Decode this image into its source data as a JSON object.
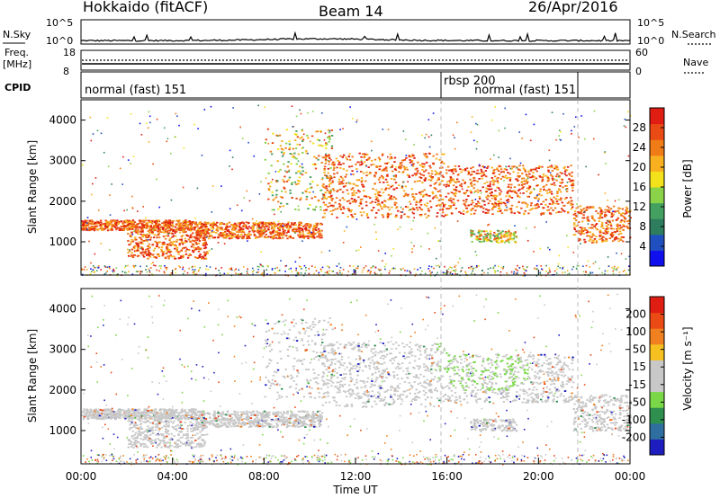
{
  "header": {
    "left": "Hokkaido (fitACF)",
    "center": "Beam 14",
    "right": "26/Apr/2016"
  },
  "labels": {
    "nsky": "N.Sky",
    "nsearch": "N.Search",
    "freq": "Freq.",
    "freq_unit": "[MHz]",
    "nave": "Nave",
    "cpid": "CPID",
    "slant_range": "Slant Range [km]",
    "time_ut": "Time UT",
    "power": "Power [dB]",
    "velocity": "Velocity [m s⁻¹]"
  },
  "noise_axis": {
    "left_ticks": [
      "10^5",
      "10^0"
    ],
    "right_ticks": [
      "10^5",
      "10^0"
    ]
  },
  "freq_axis": {
    "left_ticks": [
      "18",
      "8"
    ],
    "right_ticks": [
      "60",
      "0"
    ]
  },
  "cpid_labels": [
    {
      "start_hour": 0,
      "text": "normal (fast) 151"
    },
    {
      "start_hour": 16,
      "text": "rbsp 200"
    },
    {
      "start_hour": 16,
      "text": "normal (fast) 151"
    }
  ],
  "chart_data": [
    {
      "type": "heatmap",
      "name": "power",
      "xlabel": "Time UT",
      "ylabel": "Slant Range [km]",
      "xlim": [
        0,
        24
      ],
      "ylim": [
        180,
        4500
      ],
      "x_ticks": [
        "00:00",
        "04:00",
        "08:00",
        "12:00",
        "16:00",
        "20:00",
        "00:00"
      ],
      "y_ticks": [
        1000,
        2000,
        3000,
        4000
      ],
      "colorbar": {
        "label": "Power [dB]",
        "ticks": [
          4,
          8,
          12,
          16,
          20,
          24,
          28
        ],
        "colors": [
          "#1010ee",
          "#2050c0",
          "#2e7d5e",
          "#44a060",
          "#8ad248",
          "#f2e11b",
          "#f8b020",
          "#f07c18",
          "#ea4a14",
          "#e01d12"
        ]
      },
      "bands": [
        {
          "t_start": 0.0,
          "t_end": 5.0,
          "range_start": 1300,
          "range_end": 1550,
          "level": "high"
        },
        {
          "t_start": 2.0,
          "t_end": 5.5,
          "range_start": 600,
          "range_end": 1300,
          "level": "high"
        },
        {
          "t_start": 5.0,
          "t_end": 10.5,
          "range_start": 1100,
          "range_end": 1500,
          "level": "high"
        },
        {
          "t_start": 8.0,
          "t_end": 11.0,
          "range_start": 1800,
          "range_end": 3800,
          "level": "medium"
        },
        {
          "t_start": 10.5,
          "t_end": 16.0,
          "range_start": 1600,
          "range_end": 3200,
          "level": "high"
        },
        {
          "t_start": 16.0,
          "t_end": 21.5,
          "range_start": 1700,
          "range_end": 2900,
          "level": "high"
        },
        {
          "t_start": 21.5,
          "t_end": 24.0,
          "range_start": 1000,
          "range_end": 1900,
          "level": "high"
        },
        {
          "t_start": 17.0,
          "t_end": 19.0,
          "range_start": 1000,
          "range_end": 1300,
          "level": "medium"
        }
      ]
    },
    {
      "type": "heatmap",
      "name": "velocity",
      "xlabel": "Time UT",
      "ylabel": "Slant Range [km]",
      "xlim": [
        0,
        24
      ],
      "ylim": [
        180,
        4500
      ],
      "x_ticks": [
        "00:00",
        "04:00",
        "08:00",
        "12:00",
        "16:00",
        "20:00",
        "00:00"
      ],
      "y_ticks": [
        1000,
        2000,
        3000,
        4000
      ],
      "colorbar": {
        "label": "Velocity [m s⁻¹]",
        "ticks": [
          200,
          100,
          50,
          15,
          -15,
          -50,
          -100,
          -200
        ],
        "colors": [
          "#1e1ec0",
          "#2f6fa0",
          "#2f8f4e",
          "#7ad848",
          "#c8c8c8",
          "#c8c8c8",
          "#f6c020",
          "#f08020",
          "#ea4a14",
          "#e01d12"
        ]
      }
    }
  ]
}
